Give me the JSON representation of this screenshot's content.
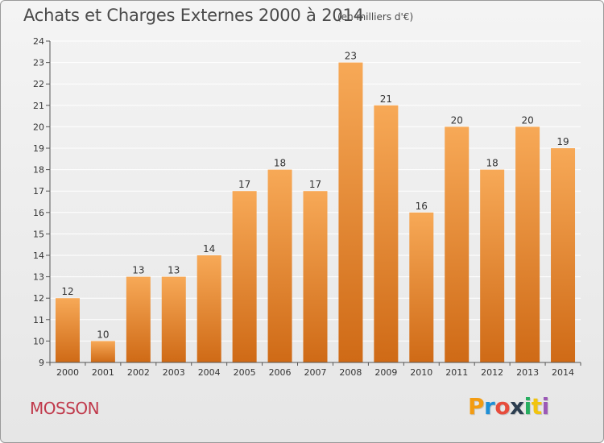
{
  "header": {
    "title": "Achats et Charges Externes 2000 à 2014",
    "subtitle": "(en milliers d'€)"
  },
  "footer": {
    "place": "MOSSON",
    "brand": "Proxiti",
    "brand_letters": [
      "P",
      "r",
      "o",
      "x",
      "i",
      "t",
      "i"
    ],
    "brand_colors": [
      "#f39c12",
      "#1f8fd6",
      "#e74c3c",
      "#2c3e50",
      "#27ae60",
      "#f1c40f",
      "#9b59b6"
    ]
  },
  "colors": {
    "bar_light": "#f7a957",
    "bar_dark": "#cf6a16",
    "grid": "#ffffff",
    "axis_text": "#333333"
  },
  "chart_data": {
    "type": "bar",
    "title": "Achats et Charges Externes 2000 à 2014",
    "subtitle": "(en milliers d'€)",
    "categories": [
      "2000",
      "2001",
      "2002",
      "2003",
      "2004",
      "2005",
      "2006",
      "2007",
      "2008",
      "2009",
      "2010",
      "2011",
      "2012",
      "2013",
      "2014"
    ],
    "values": [
      12,
      10,
      13,
      13,
      14,
      17,
      18,
      17,
      23,
      21,
      16,
      20,
      18,
      20,
      19
    ],
    "xlabel": "",
    "ylabel": "",
    "ylim": [
      9,
      24
    ],
    "yticks": [
      9,
      10,
      11,
      12,
      13,
      14,
      15,
      16,
      17,
      18,
      19,
      20,
      21,
      22,
      23,
      24
    ],
    "grid": true,
    "data_labels": true
  }
}
